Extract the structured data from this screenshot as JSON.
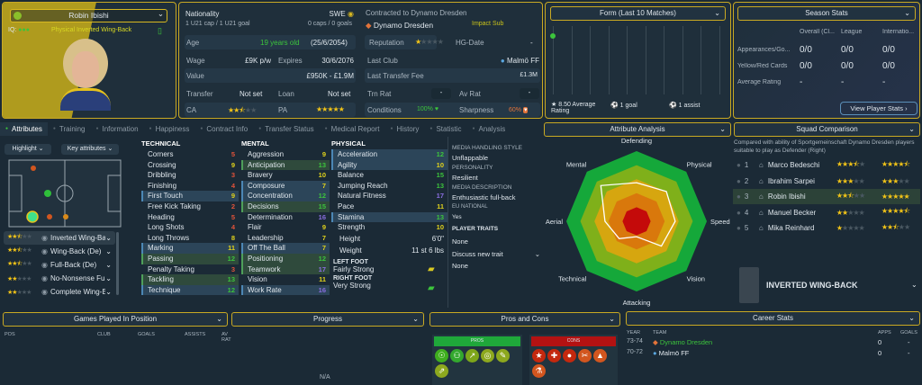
{
  "profile": {
    "name": "Robin Ibishi",
    "iq_label": "IQ:",
    "role_desc": "Physical Inverted Wing-Back"
  },
  "info": {
    "nationality_label": "Nationality",
    "nationality": "SWE",
    "u21": "1 U21 cap / 1 U21 goal",
    "caps": "0 caps / 0 goals",
    "contracted": "Contracted to Dynamo Dresden",
    "club": "Dynamo Dresden",
    "squad_status": "Impact Sub",
    "age_label": "Age",
    "age": "19 years old",
    "dob": "(25/6/2054)",
    "reputation_label": "Reputation",
    "hg_label": "HG-Date",
    "hg": "-",
    "wage_label": "Wage",
    "wage": "£9K p/w",
    "expires_label": "Expires",
    "expires": "30/6/2076",
    "last_club_label": "Last Club",
    "last_club": "Malmö FF",
    "value_label": "Value",
    "value": "£950K - £1.9M",
    "ltf_label": "Last Transfer Fee",
    "ltf": "£1.3M",
    "transfer_label": "Transfer",
    "transfer": "Not set",
    "loan_label": "Loan",
    "loan": "Not set",
    "trn_label": "Trn Rat",
    "trn": "-",
    "av_label": "Av Rat",
    "av": "-",
    "ca_label": "CA",
    "ca_stars": 2.5,
    "pa_label": "PA",
    "pa_stars": 5,
    "conditions_label": "Conditions",
    "conditions": "100%",
    "sharpness_label": "Sharpness",
    "sharpness": "60%"
  },
  "form": {
    "title": "Form (Last 10 Matches)",
    "avg": "8.50 Average Rating",
    "goals": "1 goal",
    "assists": "1 assist",
    "ratings": [
      8.5
    ]
  },
  "season": {
    "title": "Season Stats",
    "cols": [
      "Overall (Cl...",
      "League",
      "Internatio..."
    ],
    "rows": [
      {
        "label": "Appearances/Go...",
        "vals": [
          "0/0",
          "0/0",
          "0/0"
        ]
      },
      {
        "label": "Yellow/Red Cards",
        "vals": [
          "0/0",
          "0/0",
          "0/0"
        ]
      },
      {
        "label": "Average Rating",
        "vals": [
          "-",
          "-",
          "-"
        ]
      }
    ],
    "button": "View Player Stats"
  },
  "tabs": [
    "Attributes",
    "Training",
    "Information",
    "Happiness",
    "Contract Info",
    "Transfer Status",
    "Medical Report",
    "History",
    "Statistic",
    "Analysis"
  ],
  "filters": {
    "highlight": "Highlight",
    "key": "Key attributes"
  },
  "roles": [
    {
      "name": "Inverted Wing-Bac...",
      "stars": 2.5
    },
    {
      "name": "Wing-Back (De)",
      "stars": 2.5
    },
    {
      "name": "Full-Back (De)",
      "stars": 2.5
    },
    {
      "name": "No-Nonsense Full-...",
      "stars": 2
    },
    {
      "name": "Complete Wing-Ba...",
      "stars": 2
    }
  ],
  "attributes": {
    "technical": {
      "title": "TECHNICAL",
      "items": [
        [
          "Corners",
          5,
          ""
        ],
        [
          "Crossing",
          9,
          ""
        ],
        [
          "Dribbling",
          3,
          ""
        ],
        [
          "Finishing",
          4,
          ""
        ],
        [
          "First Touch",
          9,
          "b"
        ],
        [
          "Free Kick Taking",
          2,
          ""
        ],
        [
          "Heading",
          5,
          ""
        ],
        [
          "Long Shots",
          4,
          ""
        ],
        [
          "Long Throws",
          8,
          ""
        ],
        [
          "Marking",
          11,
          "b"
        ],
        [
          "Passing",
          12,
          "g"
        ],
        [
          "Penalty Taking",
          3,
          ""
        ],
        [
          "Tackling",
          13,
          "g"
        ],
        [
          "Technique",
          12,
          "b"
        ]
      ]
    },
    "mental": {
      "title": "MENTAL",
      "items": [
        [
          "Aggression",
          9,
          ""
        ],
        [
          "Anticipation",
          13,
          "g"
        ],
        [
          "Bravery",
          10,
          ""
        ],
        [
          "Composure",
          7,
          "b"
        ],
        [
          "Concentration",
          12,
          "b"
        ],
        [
          "Decisions",
          15,
          "g"
        ],
        [
          "Determination",
          16,
          ""
        ],
        [
          "Flair",
          9,
          ""
        ],
        [
          "Leadership",
          7,
          ""
        ],
        [
          "Off The Ball",
          7,
          "b"
        ],
        [
          "Positioning",
          12,
          "g"
        ],
        [
          "Teamwork",
          17,
          "g"
        ],
        [
          "Vision",
          11,
          ""
        ],
        [
          "Work Rate",
          16,
          "b"
        ]
      ]
    },
    "physical": {
      "title": "PHYSICAL",
      "items": [
        [
          "Acceleration",
          12,
          "b"
        ],
        [
          "Agility",
          10,
          "b"
        ],
        [
          "Balance",
          15,
          ""
        ],
        [
          "Jumping Reach",
          13,
          ""
        ],
        [
          "Natural Fitness",
          17,
          ""
        ],
        [
          "Pace",
          11,
          ""
        ],
        [
          "Stamina",
          13,
          "b"
        ],
        [
          "Strength",
          10,
          ""
        ]
      ]
    },
    "height_label": "Height",
    "height": "6'0\"",
    "weight_label": "Weight",
    "weight": "11 st 6 lbs",
    "left_foot_label": "LEFT FOOT",
    "left_foot": "Fairly Strong",
    "right_foot_label": "RIGHT FOOT",
    "right_foot": "Very Strong"
  },
  "media": {
    "mhs_label": "MEDIA HANDLING STYLE",
    "mhs": "Unflappable",
    "pers_label": "PERSONALITY",
    "pers": "Resilient",
    "desc_label": "MEDIA DESCRIPTION",
    "desc": "Enthusiastic full-back",
    "eu_label": "EU NATIONAL",
    "eu": "Yes",
    "traits_label": "PLAYER TRAITS",
    "traits": "None",
    "discuss": "Discuss new trait",
    "traits2": "None"
  },
  "analysis": {
    "title": "Attribute Analysis",
    "axes": [
      "Defending",
      "Physical",
      "Speed",
      "Vision",
      "Attacking",
      "Technical",
      "Aerial",
      "Mental"
    ],
    "values": [
      0.55,
      0.6,
      0.55,
      0.5,
      0.22,
      0.35,
      0.45,
      0.72
    ]
  },
  "squad": {
    "title": "Squad Comparison",
    "desc": "Compared with ability of Sportgemeinschaft Dynamo Dresden players suitable to play as Defender (Right)",
    "players": [
      {
        "rank": "1",
        "name": "Marco Bedeschi",
        "ca": 3.5,
        "pa": 4.5
      },
      {
        "rank": "2",
        "name": "Ibrahim Sarpei",
        "ca": 3,
        "pa": 3
      },
      {
        "rank": "3",
        "name": "Robin Ibishi",
        "ca": 2.5,
        "pa": 5
      },
      {
        "rank": "4",
        "name": "Manuel Becker",
        "ca": 2,
        "pa": 4.5
      },
      {
        "rank": "5",
        "name": "Mika Reinhard",
        "ca": 1,
        "pa": 2.5
      }
    ],
    "role": "INVERTED WING-BACK"
  },
  "games": {
    "title": "Games Played In Position",
    "cols": [
      "POS",
      "CLUB",
      "GOALS",
      "ASSISTS",
      "AV RAT"
    ]
  },
  "progress": {
    "title": "Progress",
    "empty": "N/A"
  },
  "proscons": {
    "title": "Pros and Cons",
    "pros": "PROS",
    "cons": "CONS",
    "pro_icons": [
      "brain",
      "team",
      "trend",
      "target",
      "boot",
      "pass"
    ],
    "con_icons": [
      "star",
      "cross",
      "ball",
      "scissors",
      "rocket",
      "flask"
    ],
    "pro_color": "#1fa83a",
    "con_color": "#b31212"
  },
  "career": {
    "title": "Career Stats",
    "cols": [
      "YEAR",
      "TEAM",
      "APPS",
      "GOALS"
    ],
    "rows": [
      [
        "73-74",
        "Dynamo Dresden",
        "0",
        "-"
      ],
      [
        "70-72",
        "Malmö FF",
        "0",
        "-"
      ]
    ]
  }
}
